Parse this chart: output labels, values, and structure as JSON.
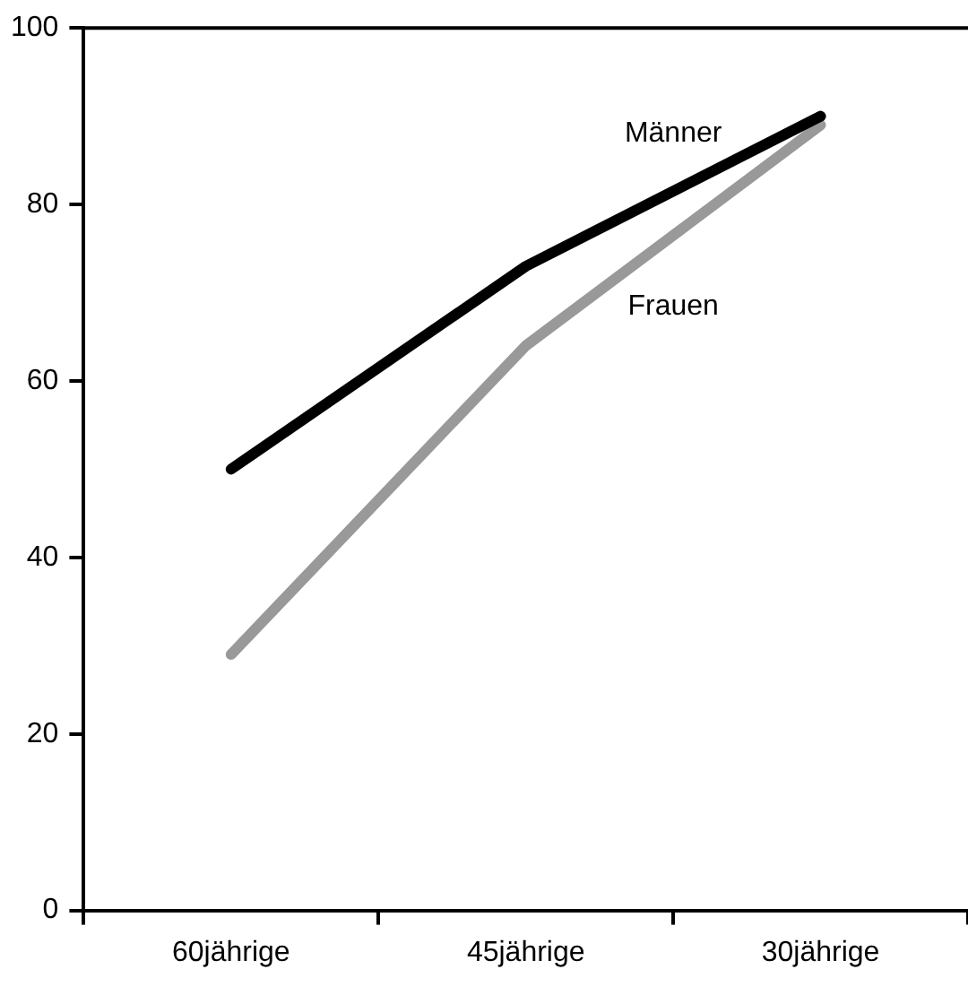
{
  "chart_data": {
    "type": "line",
    "categories": [
      "60jährige",
      "45jährige",
      "30jährige"
    ],
    "series": [
      {
        "name": "Männer",
        "color": "#000000",
        "values": [
          50,
          73,
          90
        ]
      },
      {
        "name": "Frauen",
        "color": "#999999",
        "values": [
          29,
          64,
          89
        ]
      }
    ],
    "ylim": [
      0,
      100
    ],
    "yticks": [
      0,
      20,
      40,
      60,
      80,
      100
    ],
    "grid": false,
    "legend": false,
    "marker": "none",
    "line_style": "solid"
  }
}
